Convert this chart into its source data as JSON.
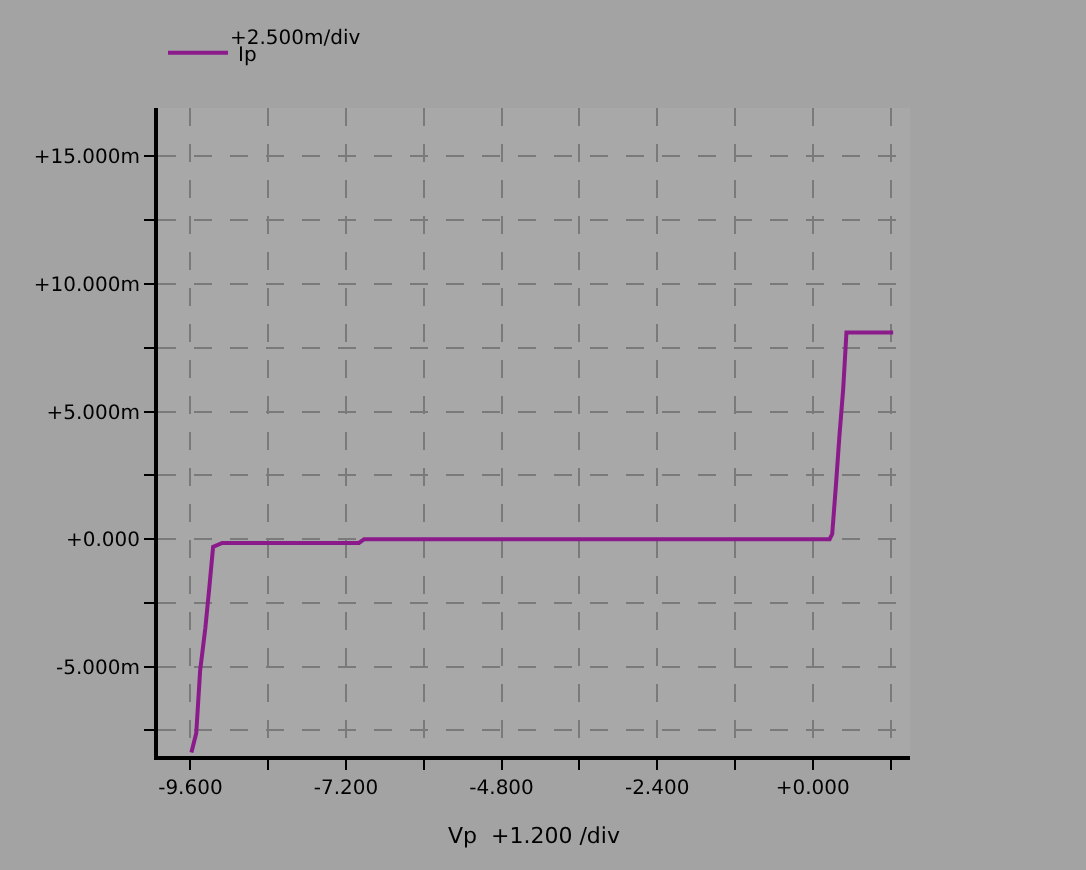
{
  "chart_data": {
    "type": "line",
    "xlabel": "Vp  +1.200 /div",
    "annotations": [
      "+2.500m/div"
    ],
    "series": [
      {
        "name": "Ip",
        "color": "#8b1a8b",
        "x": [
          -9.585,
          -9.51,
          -9.45,
          -9.37,
          -9.31,
          -9.25,
          -9.11,
          -7.0,
          -6.92,
          0.26,
          0.3,
          0.36,
          0.41,
          0.47,
          0.52,
          1.24
        ],
        "values": [
          -8.36,
          -7.61,
          -5.15,
          -3.49,
          -1.94,
          -0.3,
          -0.15,
          -0.15,
          0,
          0,
          0.2,
          2.2,
          4.0,
          5.9,
          8.1,
          8.1
        ]
      }
    ],
    "xlim": [
      -10.1,
      1.5
    ],
    "ylim": [
      -8.5,
      16.9
    ],
    "xticks": [
      {
        "value": -9.6,
        "label": "-9.600"
      },
      {
        "value": -8.4,
        "label": null
      },
      {
        "value": -7.2,
        "label": "-7.200"
      },
      {
        "value": -6.0,
        "label": null
      },
      {
        "value": -4.8,
        "label": "-4.800"
      },
      {
        "value": -3.6,
        "label": null
      },
      {
        "value": -2.4,
        "label": "-2.400"
      },
      {
        "value": -1.2,
        "label": null
      },
      {
        "value": 0,
        "label": "+0.000"
      },
      {
        "value": 1.2,
        "label": null
      }
    ],
    "yticks": [
      {
        "value": -7.5,
        "label": null
      },
      {
        "value": -5,
        "label": "-5.000m"
      },
      {
        "value": -2.5,
        "label": null
      },
      {
        "value": 0,
        "label": "+0.000"
      },
      {
        "value": 2.5,
        "label": null
      },
      {
        "value": 5,
        "label": "+5.000m"
      },
      {
        "value": 7.5,
        "label": null
      },
      {
        "value": 10,
        "label": "+10.000m"
      },
      {
        "value": 12.5,
        "label": null
      },
      {
        "value": 15,
        "label": "+15.000m"
      }
    ],
    "grid": true,
    "legend": "top left",
    "marker": "none",
    "line_style": "solid"
  }
}
